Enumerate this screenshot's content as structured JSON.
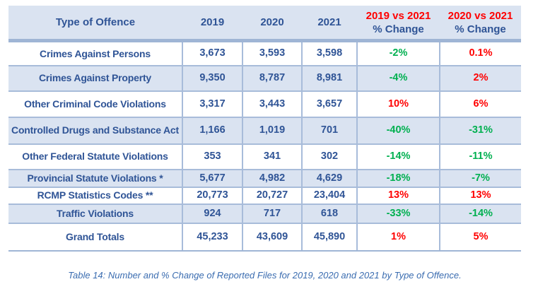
{
  "colors": {
    "text_blue": "#2F5496",
    "increase_red": "#FF0000",
    "decrease_green": "#00B050",
    "band_blue": "#DAE3F1",
    "border_blue": "#9FB5D5",
    "caption_blue": "#3A6CB0"
  },
  "table": {
    "headers": {
      "offence": "Type of Offence",
      "y2019": "2019",
      "y2020": "2020",
      "y2021": "2021",
      "chg_19_21_title": "2019 vs 2021",
      "chg_19_21_sub": "% Change",
      "chg_20_21_title": "2020 vs 2021",
      "chg_20_21_sub": "% Change"
    },
    "rows": [
      {
        "offence": "Crimes Against Persons",
        "y2019": "3,673",
        "y2020": "3,593",
        "y2021": "3,598",
        "chg_19_21": "-2%",
        "chg_19_21_color": "green",
        "chg_20_21": "0.1%",
        "chg_20_21_color": "red"
      },
      {
        "offence": "Crimes Against Property",
        "y2019": "9,350",
        "y2020": "8,787",
        "y2021": "8,981",
        "chg_19_21": "-4%",
        "chg_19_21_color": "green",
        "chg_20_21": "2%",
        "chg_20_21_color": "red"
      },
      {
        "offence": "Other Criminal Code Violations",
        "y2019": "3,317",
        "y2020": "3,443",
        "y2021": "3,657",
        "chg_19_21": "10%",
        "chg_19_21_color": "red",
        "chg_20_21": "6%",
        "chg_20_21_color": "red"
      },
      {
        "offence": "Controlled Drugs and Substance Act",
        "y2019": "1,166",
        "y2020": "1,019",
        "y2021": "701",
        "chg_19_21": "-40%",
        "chg_19_21_color": "green",
        "chg_20_21": "-31%",
        "chg_20_21_color": "green"
      },
      {
        "offence": "Other Federal Statute Violations",
        "y2019": "353",
        "y2020": "341",
        "y2021": "302",
        "chg_19_21": "-14%",
        "chg_19_21_color": "green",
        "chg_20_21": "-11%",
        "chg_20_21_color": "green"
      },
      {
        "offence": "Provincial Statute Violations *",
        "y2019": "5,677",
        "y2020": "4,982",
        "y2021": "4,629",
        "chg_19_21": "-18%",
        "chg_19_21_color": "green",
        "chg_20_21": "-7%",
        "chg_20_21_color": "green"
      },
      {
        "offence": "RCMP Statistics Codes **",
        "y2019": "20,773",
        "y2020": "20,727",
        "y2021": "23,404",
        "chg_19_21": "13%",
        "chg_19_21_color": "red",
        "chg_20_21": "13%",
        "chg_20_21_color": "red"
      },
      {
        "offence": "Traffic Violations",
        "y2019": "924",
        "y2020": "717",
        "y2021": "618",
        "chg_19_21": "-33%",
        "chg_19_21_color": "green",
        "chg_20_21": "-14%",
        "chg_20_21_color": "green"
      },
      {
        "offence": "Grand Totals",
        "y2019": "45,233",
        "y2020": "43,609",
        "y2021": "45,890",
        "chg_19_21": "1%",
        "chg_19_21_color": "red",
        "chg_20_21": "5%",
        "chg_20_21_color": "red"
      }
    ]
  },
  "caption": "Table 14: Number and % Change of Reported Files for 2019, 2020 and 2021 by Type of Offence."
}
